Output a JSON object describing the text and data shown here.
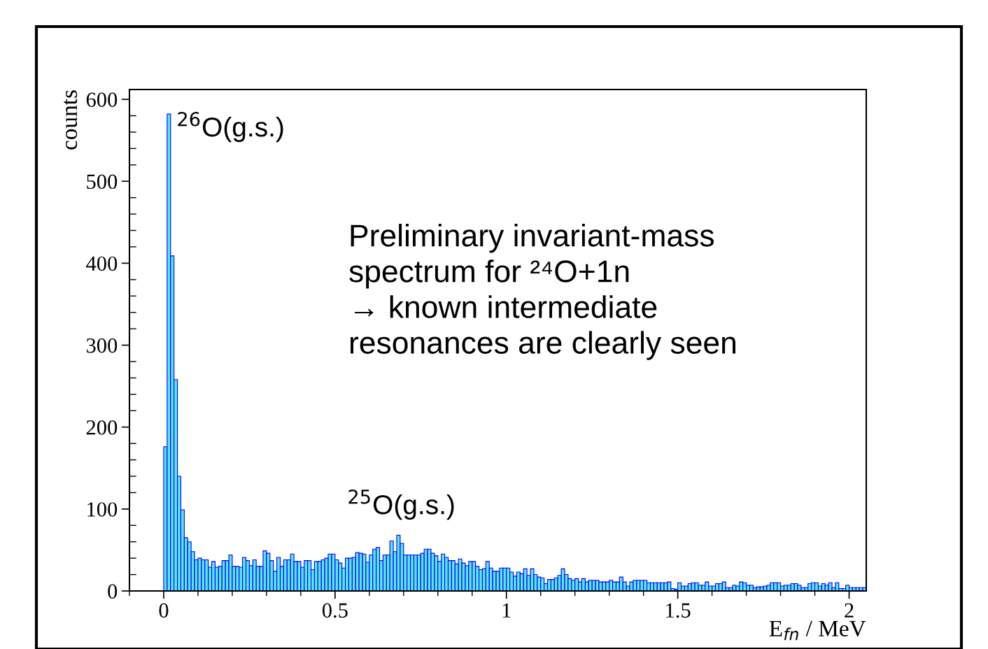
{
  "chart_data": {
    "type": "histogram",
    "xlabel": "E$_{fn}$ / MeV",
    "ylabel": "counts",
    "xlim": [
      -0.1,
      2.05
    ],
    "ylim": [
      0,
      612
    ],
    "xticks": [
      0,
      0.5,
      1,
      1.5,
      2
    ],
    "yticks": [
      0,
      100,
      200,
      300,
      400,
      500,
      600
    ],
    "grid": false,
    "legend": false,
    "color": "#5ce6f0",
    "bins": [
      0,
      0.01,
      0.02,
      0.03,
      0.04,
      0.05,
      0.06,
      0.07,
      0.08,
      0.09,
      0.1,
      0.11,
      0.12,
      0.13,
      0.14,
      0.15,
      0.16,
      0.17,
      0.18,
      0.19,
      0.2,
      0.21,
      0.22,
      0.23,
      0.24,
      0.25,
      0.26,
      0.27,
      0.28,
      0.29,
      0.3,
      0.31,
      0.32,
      0.33,
      0.34,
      0.35,
      0.36,
      0.37,
      0.38,
      0.39,
      0.4,
      0.41,
      0.42,
      0.43,
      0.44,
      0.45,
      0.46,
      0.47,
      0.48,
      0.49,
      0.5,
      0.51,
      0.52,
      0.53,
      0.54,
      0.55,
      0.56,
      0.57,
      0.58,
      0.59,
      0.6,
      0.61,
      0.62,
      0.63,
      0.64,
      0.65,
      0.66,
      0.67,
      0.68,
      0.69,
      0.7,
      0.71,
      0.72,
      0.73,
      0.74,
      0.75,
      0.76,
      0.77,
      0.78,
      0.79,
      0.8,
      0.81,
      0.82,
      0.83,
      0.84,
      0.85,
      0.86,
      0.87,
      0.88,
      0.89,
      0.9,
      0.91,
      0.92,
      0.93,
      0.94,
      0.95,
      0.96,
      0.97,
      0.98,
      0.99,
      1,
      1.01,
      1.02,
      1.03,
      1.04,
      1.05,
      1.06,
      1.07,
      1.08,
      1.09,
      1.1,
      1.11,
      1.12,
      1.13,
      1.14,
      1.15,
      1.16,
      1.17,
      1.18,
      1.19,
      1.2,
      1.21,
      1.22,
      1.23,
      1.24,
      1.25,
      1.26,
      1.27,
      1.28,
      1.29,
      1.3,
      1.31,
      1.32,
      1.33,
      1.34,
      1.35,
      1.36,
      1.37,
      1.38,
      1.39,
      1.4,
      1.41,
      1.42,
      1.43,
      1.44,
      1.45,
      1.46,
      1.47,
      1.48,
      1.49,
      1.5,
      1.51,
      1.52,
      1.53,
      1.54,
      1.55,
      1.56,
      1.57,
      1.58,
      1.59,
      1.6,
      1.61,
      1.62,
      1.63,
      1.64,
      1.65,
      1.66,
      1.67,
      1.68,
      1.69,
      1.7,
      1.71,
      1.72,
      1.73,
      1.74,
      1.75,
      1.76,
      1.77,
      1.78,
      1.79,
      1.8,
      1.81,
      1.82,
      1.83,
      1.84,
      1.85,
      1.86,
      1.87,
      1.88,
      1.89,
      1.9,
      1.91,
      1.92,
      1.93,
      1.94,
      1.95,
      1.96,
      1.97,
      1.98,
      1.99,
      2,
      2.01,
      2.02,
      2.03,
      2.04,
      2.05
    ],
    "values": [
      176,
      582,
      409,
      258,
      140,
      99,
      65,
      60,
      48,
      38,
      40,
      38,
      38,
      29,
      36,
      29,
      30,
      37,
      37,
      44,
      30,
      30,
      29,
      41,
      37,
      31,
      38,
      30,
      30,
      49,
      46,
      37,
      24,
      41,
      30,
      38,
      38,
      45,
      36,
      36,
      29,
      37,
      37,
      26,
      36,
      36,
      38,
      40,
      45,
      45,
      38,
      34,
      28,
      40,
      40,
      41,
      47,
      46,
      45,
      35,
      44,
      51,
      53,
      37,
      44,
      44,
      61,
      48,
      68,
      58,
      44,
      44,
      44,
      44,
      44,
      46,
      51,
      51,
      46,
      43,
      36,
      45,
      41,
      37,
      37,
      33,
      39,
      34,
      31,
      36,
      36,
      30,
      26,
      27,
      36,
      28,
      24,
      24,
      28,
      28,
      28,
      23,
      18,
      23,
      21,
      27,
      19,
      27,
      20,
      17,
      16,
      9,
      14,
      14,
      16,
      19,
      27,
      20,
      15,
      13,
      15,
      11,
      15,
      11,
      13,
      13,
      13,
      11,
      11,
      11,
      13,
      11,
      11,
      17,
      11,
      6,
      11,
      13,
      13,
      13,
      13,
      10,
      10,
      10,
      10,
      10,
      10,
      11,
      3,
      2,
      10,
      6,
      6,
      9,
      10,
      10,
      7,
      7,
      11,
      6,
      6,
      9,
      9,
      11,
      4,
      4,
      7,
      6,
      11,
      10,
      7,
      7,
      4,
      5,
      5,
      6,
      7,
      10,
      10,
      10,
      6,
      7,
      7,
      9,
      9,
      7,
      4,
      4,
      9,
      10,
      10,
      6,
      9,
      7,
      10,
      4,
      10,
      3,
      3,
      7,
      4,
      4,
      4,
      4,
      4
    ],
    "annotations": [
      "$^{26}$O(g.s.)",
      "$^{25}$O(g.s.)",
      "Preliminary invariant-mass\nspectrum for ²⁴O+1n\n→ known intermediate\nresonances are clearly seen"
    ]
  }
}
